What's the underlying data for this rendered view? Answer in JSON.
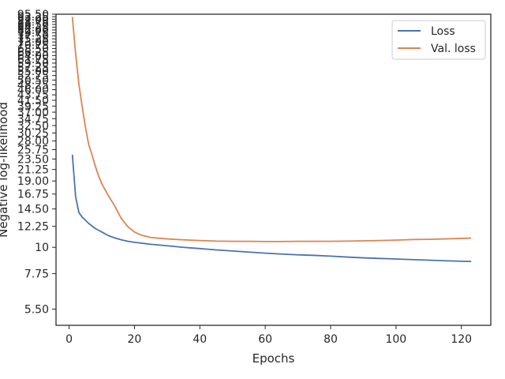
{
  "chart_data": {
    "type": "line",
    "xlabel": "Epochs",
    "ylabel": "Negative log-likelihood",
    "y_scale": "log",
    "xlim": [
      -4,
      129
    ],
    "ylim": [
      4.7,
      95.5
    ],
    "xticks": [
      0,
      20,
      40,
      60,
      80,
      100,
      120
    ],
    "yticks": [
      5.5,
      7.75,
      10,
      12.25,
      14.5,
      16.75,
      19,
      21.25,
      23.5,
      25.75,
      28,
      30.25,
      32.5,
      34.75,
      37,
      39.25,
      41.5,
      43.75,
      46,
      48.25,
      50.5,
      52.75,
      55,
      57.25,
      59.5,
      61.75,
      64,
      66.25,
      68.5,
      70.75,
      73,
      75.25,
      77.5,
      79.75,
      82,
      84.25,
      86.5,
      88.75,
      91,
      93.25,
      95.5
    ],
    "ytick_labels": [
      "5.50",
      "7.75",
      "10",
      "12.25",
      "14.50",
      "16.75",
      "19.00",
      "21.25",
      "23.50",
      "25.75",
      "28.00",
      "30.25",
      "32.50",
      "34.75",
      "37.00",
      "39.25",
      "41.50",
      "43.75",
      "46.00",
      "48.25",
      "50.50",
      "52.75",
      "55.00",
      "57.25",
      "59.50",
      "61.75",
      "64.00",
      "66.25",
      "68.50",
      "70.75",
      "73.00",
      "75.25",
      "77.50",
      "79.75",
      "82.00",
      "84.25",
      "86.50",
      "88.75",
      "91.00",
      "93.25",
      "95.50"
    ],
    "grid": false,
    "legend_position": "upper-right",
    "series": [
      {
        "name": "Loss",
        "color": "#4c72b0",
        "x": [
          1,
          2,
          3,
          4,
          5,
          6,
          7,
          8,
          10,
          12,
          14,
          16,
          18,
          20,
          25,
          30,
          35,
          40,
          45,
          50,
          55,
          60,
          65,
          70,
          75,
          80,
          85,
          90,
          95,
          100,
          105,
          110,
          115,
          120,
          123
        ],
        "y": [
          24.5,
          16.3,
          14.0,
          13.4,
          13.0,
          12.6,
          12.3,
          12.0,
          11.6,
          11.2,
          10.95,
          10.75,
          10.6,
          10.5,
          10.3,
          10.15,
          10.0,
          9.88,
          9.75,
          9.65,
          9.55,
          9.45,
          9.37,
          9.3,
          9.25,
          9.18,
          9.1,
          9.03,
          8.98,
          8.93,
          8.88,
          8.83,
          8.78,
          8.74,
          8.72
        ]
      },
      {
        "name": "Val. loss",
        "color": "#dd8452",
        "x": [
          1,
          2,
          3,
          4,
          5,
          6,
          7,
          8,
          9,
          10,
          12,
          14,
          15,
          16,
          17,
          18,
          20,
          22,
          25,
          30,
          35,
          40,
          45,
          50,
          55,
          60,
          65,
          70,
          75,
          80,
          85,
          90,
          95,
          100,
          105,
          110,
          115,
          120,
          122,
          123
        ],
        "y": [
          93.0,
          65.0,
          48.5,
          39.0,
          32.0,
          27.0,
          24.5,
          22.0,
          20.0,
          18.5,
          16.5,
          14.9,
          14.0,
          13.2,
          12.7,
          12.2,
          11.6,
          11.25,
          11.0,
          10.85,
          10.75,
          10.68,
          10.62,
          10.6,
          10.6,
          10.58,
          10.58,
          10.6,
          10.6,
          10.6,
          10.62,
          10.65,
          10.68,
          10.72,
          10.78,
          10.8,
          10.85,
          10.9,
          10.92,
          10.95
        ]
      }
    ]
  }
}
